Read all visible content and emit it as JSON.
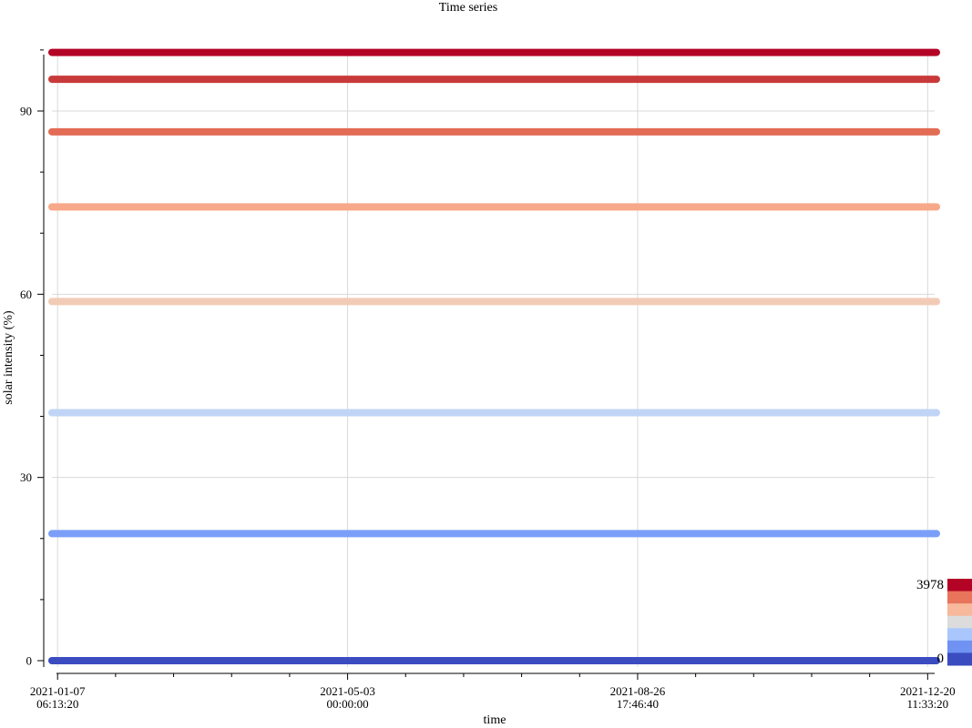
{
  "chart_data": {
    "type": "line",
    "title": "Time series",
    "xlabel": "time",
    "ylabel": "solar intensity (%)",
    "x_ticks": [
      {
        "date": "2021-01-07",
        "time": "06:13:20"
      },
      {
        "date": "2021-05-03",
        "time": "00:00:00"
      },
      {
        "date": "2021-08-26",
        "time": "17:46:40"
      },
      {
        "date": "2021-12-20",
        "time": "11:33:20"
      }
    ],
    "xlim": [
      "2021-01-05T00:00:00",
      "2021-12-24T00:00:00"
    ],
    "y_ticks": [
      "0",
      "30",
      "60",
      "90"
    ],
    "ylim": [
      -2,
      100.5
    ],
    "grid": true,
    "series": [
      {
        "values": [
          0,
          0
        ],
        "color": "#3b4cc0"
      },
      {
        "values": [
          20.8,
          20.8
        ],
        "color": "#7b9ff9"
      },
      {
        "values": [
          40.6,
          40.6
        ],
        "color": "#c0d4f5"
      },
      {
        "values": [
          58.8,
          58.8
        ],
        "color": "#f2cbb7"
      },
      {
        "values": [
          74.3,
          74.3
        ],
        "color": "#f7a889"
      },
      {
        "values": [
          86.6,
          86.6
        ],
        "color": "#e36c55"
      },
      {
        "values": [
          95.2,
          95.2
        ],
        "color": "#c83a3a"
      },
      {
        "values": [
          99.6,
          99.6
        ],
        "color": "#b40426"
      }
    ],
    "series_x": [
      "2021-01-05T00:00:00",
      "2021-12-24T00:00:00"
    ],
    "colorbar": {
      "min_label": "0",
      "max_label": "3978",
      "colors": [
        "#3b4cc0",
        "#6f92f3",
        "#aac7fd",
        "#dddcdc",
        "#f7b89c",
        "#e7745b",
        "#b40426"
      ]
    }
  }
}
